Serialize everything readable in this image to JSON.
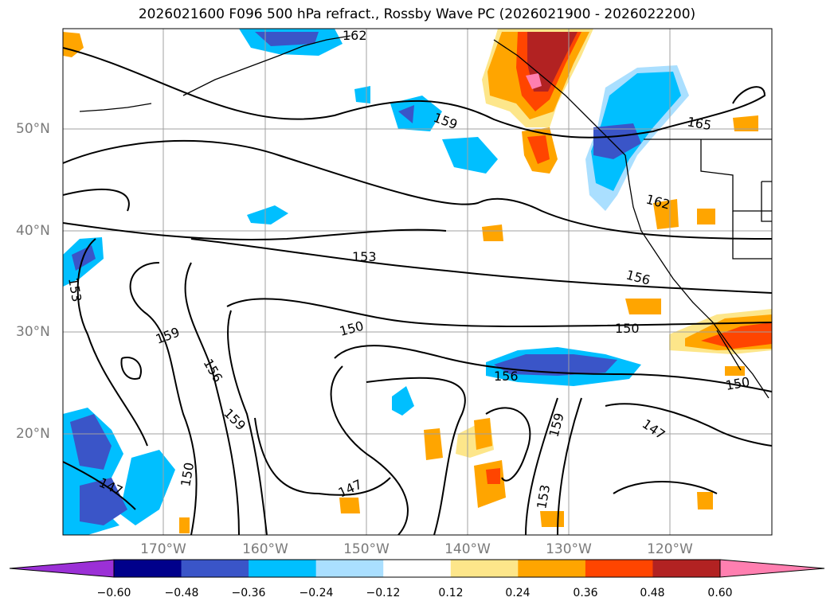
{
  "title": "2026021600 F096 500 hPa refract., Rossby Wave PC (2026021900 - 2026022200)",
  "lat_labels": [
    "50°N",
    "40°N",
    "30°N",
    "20°N"
  ],
  "lon_labels": [
    "170°W",
    "160°W",
    "150°W",
    "140°W",
    "130°W",
    "120°W"
  ],
  "contour_labels": [
    "162",
    "159",
    "165",
    "162",
    "156",
    "153",
    "153",
    "150",
    "150",
    "159",
    "156",
    "159",
    "156",
    "150",
    "147",
    "150",
    "147",
    "159",
    "153",
    "147"
  ],
  "colorbar": {
    "ticks": [
      "−0.60",
      "−0.48",
      "−0.36",
      "−0.24",
      "−0.12",
      "0.12",
      "0.24",
      "0.36",
      "0.48",
      "0.60"
    ],
    "colors": [
      "#9b30d6",
      "#00008b",
      "#3a55c8",
      "#00bfff",
      "#aadfff",
      "#ffffff",
      "#fde68a",
      "#ffa500",
      "#ff4500",
      "#b22222",
      "#ff7fb0"
    ]
  },
  "colors": {
    "contour": "#000000",
    "coastline": "#000000",
    "grid": "#a0a0a0"
  }
}
